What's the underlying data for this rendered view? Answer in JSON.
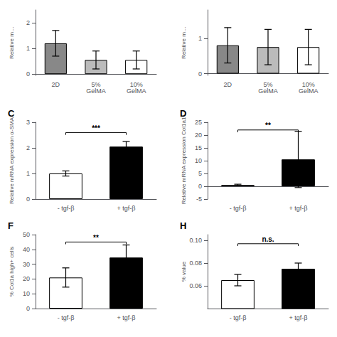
{
  "chart_data": [
    {
      "type": "bar",
      "ylabel": "Relative m…",
      "categories": [
        "2D",
        "5%\nGelMA",
        "10%\nGelMA"
      ],
      "values": [
        1.2,
        0.55,
        0.55
      ],
      "errors": [
        0.5,
        0.35,
        0.35
      ],
      "colors": [
        "#888888",
        "#bbbbbb",
        "white"
      ],
      "ylim": [
        -0.05,
        2.5
      ],
      "yticks": [
        0,
        1,
        2
      ],
      "grid": false
    },
    {
      "type": "bar",
      "ylabel": "Relative m…",
      "categories": [
        "2D",
        "5%\nGelMA",
        "10%\nGelMA"
      ],
      "values": [
        0.8,
        0.75,
        0.75
      ],
      "errors": [
        0.5,
        0.5,
        0.5
      ],
      "colors": [
        "#888888",
        "#bbbbbb",
        "white"
      ],
      "ylim": [
        -0.05,
        1.8
      ],
      "yticks": [
        0,
        1
      ],
      "grid": false
    },
    {
      "type": "bar",
      "title": "C",
      "ylabel": "Relative mRNA expression α-SMA",
      "categories": [
        "- tgf-β",
        "+ tgf-β"
      ],
      "values": [
        1.0,
        2.05
      ],
      "errors": [
        0.1,
        0.2
      ],
      "colors": [
        "white",
        "black"
      ],
      "ylim": [
        0,
        3
      ],
      "yticks": [
        0,
        1,
        2,
        3
      ],
      "grid": false,
      "annotations": [
        {
          "text": "***",
          "y": 2.6,
          "x": [
            "- tgf-β",
            "+ tgf-β"
          ]
        }
      ]
    },
    {
      "type": "bar",
      "title": "D",
      "ylabel": "Relative mRNA expression Col1a1",
      "categories": [
        "- tgf-β",
        "+ tgf-β"
      ],
      "values": [
        0.5,
        10.5
      ],
      "errors": [
        0.3,
        11.0
      ],
      "colors": [
        "white",
        "black"
      ],
      "ylim": [
        -5,
        25
      ],
      "yticks": [
        -5,
        0,
        5,
        10,
        15,
        20,
        25
      ],
      "grid": false,
      "annotations": [
        {
          "text": "**",
          "y": 22.0,
          "x": [
            "- tgf-β",
            "+ tgf-β"
          ]
        }
      ]
    },
    {
      "type": "bar",
      "title": "F",
      "ylabel": "% Col1a high+ cells",
      "categories": [
        "- tgf-β",
        "+ tgf-β"
      ],
      "values": [
        21.0,
        34.5
      ],
      "errors": [
        6.5,
        8.5
      ],
      "colors": [
        "white",
        "black"
      ],
      "ylim": [
        0,
        50
      ],
      "yticks": [
        0,
        10,
        20,
        30,
        40,
        50
      ],
      "grid": false,
      "annotations": [
        {
          "text": "**",
          "y": 45.0,
          "x": [
            "- tgf-β",
            "+ tgf-β"
          ]
        }
      ]
    },
    {
      "type": "bar",
      "title": "H",
      "ylabel": "% value",
      "categories": [
        "- tgf-β",
        "+ tgf-β"
      ],
      "values": [
        0.065,
        0.075
      ],
      "errors": [
        0.005,
        0.005
      ],
      "colors": [
        "white",
        "black"
      ],
      "ylim": [
        0.04,
        0.105
      ],
      "yticks": [
        0.06,
        0.08,
        {
          "value": 0.1,
          "label": "0.10"
        }
      ],
      "grid": false,
      "annotations": [
        {
          "text": "n.s.",
          "y": 0.097,
          "x": [
            "- tgf-β",
            "+ tgf-β"
          ]
        }
      ]
    }
  ]
}
